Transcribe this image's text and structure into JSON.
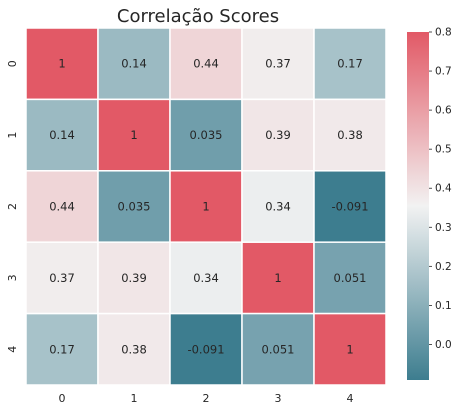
{
  "chart_data": {
    "type": "heatmap",
    "title": "Correlação Scores",
    "x_categories": [
      "0",
      "1",
      "2",
      "3",
      "4"
    ],
    "y_categories": [
      "0",
      "1",
      "2",
      "3",
      "4"
    ],
    "values": [
      [
        1,
        0.14,
        0.44,
        0.37,
        0.17
      ],
      [
        0.14,
        1,
        0.035,
        0.39,
        0.38
      ],
      [
        0.44,
        0.035,
        1,
        0.34,
        -0.091
      ],
      [
        0.37,
        0.39,
        0.34,
        1,
        0.051
      ],
      [
        0.17,
        0.38,
        -0.091,
        0.051,
        1
      ]
    ],
    "cell_labels": [
      [
        "1",
        "0.14",
        "0.44",
        "0.37",
        "0.17"
      ],
      [
        "0.14",
        "1",
        "0.035",
        "0.39",
        "0.38"
      ],
      [
        "0.44",
        "0.035",
        "1",
        "0.34",
        "-0.091"
      ],
      [
        "0.37",
        "0.39",
        "0.34",
        "1",
        "0.051"
      ],
      [
        "0.17",
        "0.38",
        "-0.091",
        "0.051",
        "1"
      ]
    ],
    "colorbar": {
      "vmin": -0.091,
      "vmax": 0.8,
      "ticks": [
        0.8,
        0.7,
        0.6,
        0.5,
        0.4,
        0.3,
        0.2,
        0.1,
        0.0
      ],
      "tick_labels": [
        "0.8",
        "0.7",
        "0.6",
        "0.5",
        "0.4",
        "0.3",
        "0.2",
        "0.1",
        "0.0"
      ]
    },
    "colors": {
      "low": "#3d7d8f",
      "mid": "#f2f2f2",
      "high": "#e25966",
      "cell_border": "#ffffff"
    }
  }
}
